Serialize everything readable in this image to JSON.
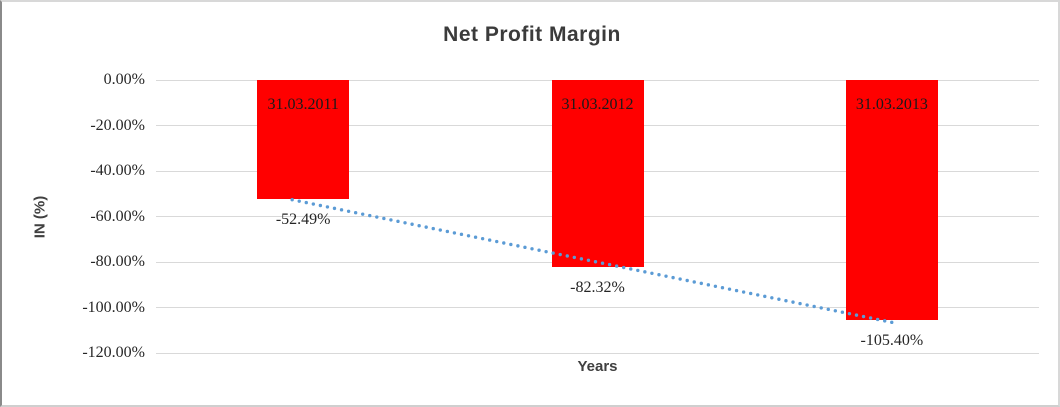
{
  "chart_data": {
    "type": "bar",
    "title": "Net Profit Margin",
    "xlabel": "Years",
    "ylabel": "IN (%)",
    "categories": [
      "31.03.2011",
      "31.03.2012",
      "31.03.2013"
    ],
    "values": [
      -52.49,
      -82.32,
      -105.4
    ],
    "value_labels": [
      "-52.49%",
      "-82.32%",
      "-105.40%"
    ],
    "ylim": [
      0,
      -120
    ],
    "ytick_values": [
      0,
      -20,
      -40,
      -60,
      -80,
      -100,
      -120
    ],
    "ytick_labels": [
      "0.00%",
      "-20.00%",
      "-40.00%",
      "-60.00%",
      "-80.00%",
      "-100.00%",
      "-120.00%"
    ],
    "grid": true,
    "legend": false,
    "bar_color": "#FF0000",
    "bar_label_color": "#1a1a1a",
    "tick_label_color": "#262626",
    "gridline_color": "#d9d9d9",
    "trendline": {
      "type": "linear",
      "style": "dotted",
      "color": "#5B9BD5"
    }
  }
}
